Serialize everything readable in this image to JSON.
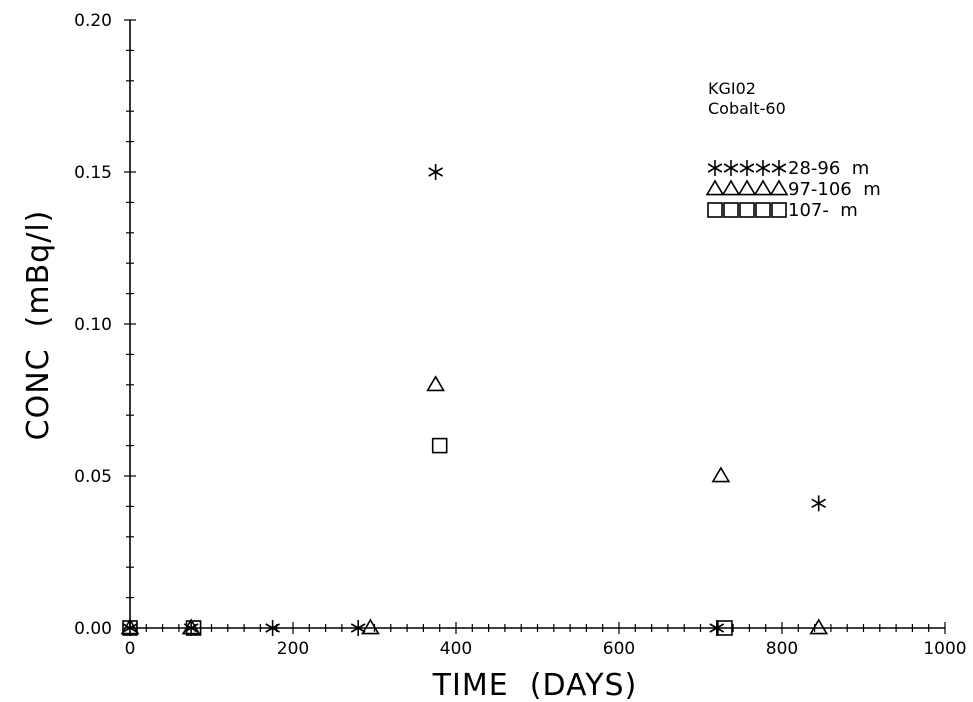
{
  "chart_data": {
    "type": "scatter",
    "xlabel": "TIME  (DAYS)",
    "ylabel": "CONC  (mBq/l)",
    "xlim": [
      0,
      1000
    ],
    "ylim": [
      0,
      0.2
    ],
    "x_ticks": [
      "0",
      "200",
      "400",
      "600",
      "800",
      "1000"
    ],
    "y_ticks": [
      "0.00",
      "0.05",
      "0.10",
      "0.15",
      "0.20"
    ],
    "grid": false,
    "annotation": [
      "KGI02",
      "Cobalt-60"
    ],
    "legend_position": "top-right",
    "series": [
      {
        "name": "28-96  m",
        "marker": "asterisk",
        "points": [
          [
            0,
            0
          ],
          [
            75,
            0
          ],
          [
            175,
            0
          ],
          [
            280,
            0
          ],
          [
            375,
            0.15
          ],
          [
            720,
            0
          ],
          [
            845,
            0.041
          ]
        ]
      },
      {
        "name": "97-106  m",
        "marker": "triangle",
        "points": [
          [
            0,
            0
          ],
          [
            75,
            0
          ],
          [
            295,
            0
          ],
          [
            375,
            0.08
          ],
          [
            725,
            0.05
          ],
          [
            845,
            0
          ]
        ]
      },
      {
        "name": "107-  m",
        "marker": "square",
        "points": [
          [
            0,
            0
          ],
          [
            78,
            0
          ],
          [
            380,
            0.06
          ],
          [
            730,
            0
          ]
        ]
      }
    ]
  }
}
